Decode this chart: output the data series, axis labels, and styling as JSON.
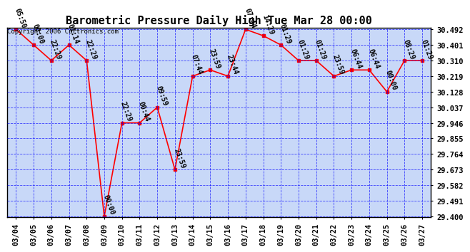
{
  "title": "Barometric Pressure Daily High Tue Mar 28 00:00",
  "copyright": "Copyright 2006 Curtronics.com",
  "dates": [
    "03/04",
    "03/05",
    "03/06",
    "03/07",
    "03/08",
    "03/09",
    "03/10",
    "03/11",
    "03/12",
    "03/13",
    "03/14",
    "03/15",
    "03/16",
    "03/17",
    "03/18",
    "03/19",
    "03/20",
    "03/21",
    "03/22",
    "03/23",
    "03/24",
    "03/25",
    "03/26",
    "03/27"
  ],
  "values": [
    30.492,
    30.401,
    30.31,
    30.401,
    30.31,
    29.4,
    29.946,
    29.946,
    30.037,
    29.673,
    30.219,
    30.255,
    30.219,
    30.492,
    30.455,
    30.401,
    30.31,
    30.31,
    30.219,
    30.255,
    30.255,
    30.128,
    30.31,
    30.31
  ],
  "annotations": [
    "05:50",
    "00:00",
    "22:29",
    "01:14",
    "22:29",
    "00:00",
    "22:29",
    "00:44",
    "09:59",
    "23:59",
    "07:44",
    "23:59",
    "23:44",
    "07:44",
    "14:29",
    "01:29",
    "01:29",
    "01:29",
    "23:59",
    "06:44",
    "06:44",
    "00:00",
    "08:29",
    "01:29"
  ],
  "ylim_min": 29.4,
  "ylim_max": 30.492,
  "yticks": [
    30.492,
    30.401,
    30.31,
    30.219,
    30.128,
    30.037,
    29.946,
    29.855,
    29.764,
    29.673,
    29.582,
    29.491,
    29.4
  ],
  "line_color": "red",
  "marker_color": "red",
  "bg_color": "#c8d8f8",
  "grid_color": "blue",
  "title_fontsize": 11,
  "tick_fontsize": 7.5,
  "annot_fontsize": 7
}
